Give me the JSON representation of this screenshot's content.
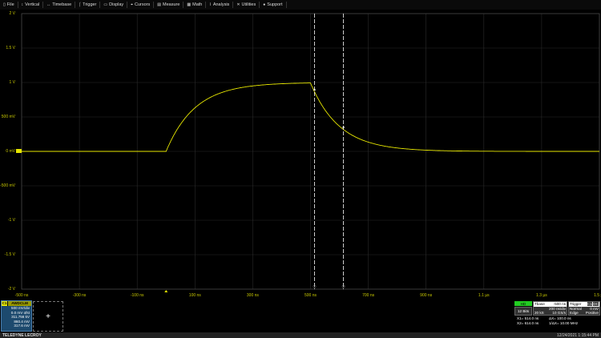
{
  "menu": [
    {
      "icon": "file-icon",
      "glyph": "▯",
      "label": "File"
    },
    {
      "icon": "vertical-icon",
      "glyph": "↕",
      "label": "Vertical"
    },
    {
      "icon": "timebase-icon",
      "glyph": "↔",
      "label": "Timebase"
    },
    {
      "icon": "trigger-icon",
      "glyph": "⌠",
      "label": "Trigger"
    },
    {
      "icon": "display-icon",
      "glyph": "▭",
      "label": "Display"
    },
    {
      "icon": "cursors-icon",
      "glyph": "⌖",
      "label": "Cursors"
    },
    {
      "icon": "measure-icon",
      "glyph": "▤",
      "label": "Measure"
    },
    {
      "icon": "math-icon",
      "glyph": "▦",
      "label": "Math"
    },
    {
      "icon": "analysis-icon",
      "glyph": "⌇",
      "label": "Analysis"
    },
    {
      "icon": "utilities-icon",
      "glyph": "✕",
      "label": "Utilities"
    },
    {
      "icon": "support-icon",
      "glyph": "●",
      "label": "Support"
    }
  ],
  "colors": {
    "trace": "#e6e600",
    "grid": "#2a2a2a",
    "cursor": "#ffffff"
  },
  "chart_data": {
    "type": "line",
    "xlim_ns": [
      -500,
      1500
    ],
    "ylim_V": [
      -2,
      2
    ],
    "yticks": [
      "2 V",
      "1.5 V",
      "1 V",
      "500 mV",
      "0 mV",
      "-500 mV",
      "-1 V",
      "-1.5 V",
      "-2 V"
    ],
    "xticks": [
      "-500 ns",
      "-300 ns",
      "-100 ns",
      "100 ns",
      "300 ns",
      "500 ns",
      "700 ns",
      "900 ns",
      "1.1 µs",
      "1.3 µs",
      "1.5 µs"
    ],
    "series": [
      {
        "shape": "RC step: rise at 0 ns, fall at 500 ns",
        "amplitude_V": 1.0,
        "tau_ns": 100
      }
    ],
    "cursors_ns": [
      514,
      614
    ],
    "cursor_labels": [
      "①",
      "②"
    ]
  },
  "channel": {
    "name": "C1",
    "label": "AWDCLM",
    "vdiv": "500 mV/div",
    "offset": "0.0 mV ofst",
    "value": "311.756 kV",
    "y1": "860.4 mV",
    "y2": "317.6 mV"
  },
  "add_label": "+",
  "acq": {
    "mode": "HD",
    "bits": "12 Bits"
  },
  "timebase": {
    "title": "Tbase",
    "delay": "-500 ns",
    "tdiv": "200 ns/div",
    "samples": "20 kS",
    "rate": "10 GS/s"
  },
  "trigger": {
    "title": "Trigger",
    "src": "C1",
    "coupling": "DC",
    "mode": "Normal",
    "level": "0 mV",
    "type": "Edge",
    "slope": "Positive"
  },
  "cursors": {
    "x1": "X1= 514.0 ns",
    "dx": "ΔX= 100.0 ns",
    "x2": "X2= 614.0 ns",
    "inv": "1/ΔX= 10.00 MHz"
  },
  "footer": {
    "brand": "TELEDYNE LECROY",
    "datetime": "12/24/2021 1:15:44 PM"
  }
}
